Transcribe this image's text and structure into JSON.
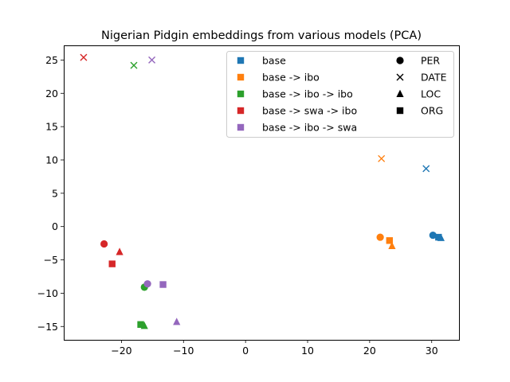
{
  "chart_data": {
    "type": "scatter",
    "title": "Nigerian Pidgin embeddings from various models (PCA)",
    "xlabel": "",
    "ylabel": "",
    "xlim": [
      -29.3,
      34.4
    ],
    "ylim": [
      -17.0,
      27.2
    ],
    "xticks": [
      -20,
      -10,
      0,
      10,
      20,
      30
    ],
    "yticks": [
      -15,
      -10,
      -5,
      0,
      5,
      10,
      15,
      20,
      25
    ],
    "grid": false,
    "legend_placement": "top-right",
    "series": [
      {
        "name": "base",
        "color": "#1f77b4",
        "points": [
          {
            "entity": "PER",
            "x": 30.2,
            "y": -1.3
          },
          {
            "entity": "DATE",
            "x": 29.1,
            "y": 8.7
          },
          {
            "entity": "LOC",
            "x": 31.5,
            "y": -1.7
          },
          {
            "entity": "ORG",
            "x": 31.1,
            "y": -1.6
          }
        ]
      },
      {
        "name": "base -> ibo",
        "color": "#ff7f0e",
        "points": [
          {
            "entity": "PER",
            "x": 21.7,
            "y": -1.6
          },
          {
            "entity": "DATE",
            "x": 21.9,
            "y": 10.2
          },
          {
            "entity": "LOC",
            "x": 23.6,
            "y": -2.9
          },
          {
            "entity": "ORG",
            "x": 23.2,
            "y": -2.1
          }
        ]
      },
      {
        "name": "base -> ibo -> ibo",
        "color": "#2ca02c",
        "points": [
          {
            "entity": "PER",
            "x": -16.3,
            "y": -9.1
          },
          {
            "entity": "DATE",
            "x": -18.0,
            "y": 24.2
          },
          {
            "entity": "LOC",
            "x": -16.3,
            "y": -14.9
          },
          {
            "entity": "ORG",
            "x": -16.9,
            "y": -14.7
          }
        ]
      },
      {
        "name": "base -> swa -> ibo",
        "color": "#d62728",
        "points": [
          {
            "entity": "PER",
            "x": -22.8,
            "y": -2.6
          },
          {
            "entity": "DATE",
            "x": -26.1,
            "y": 25.4
          },
          {
            "entity": "LOC",
            "x": -20.3,
            "y": -3.8
          },
          {
            "entity": "ORG",
            "x": -21.5,
            "y": -5.6
          }
        ]
      },
      {
        "name": "base -> ibo -> swa",
        "color": "#9467bd",
        "points": [
          {
            "entity": "PER",
            "x": -15.8,
            "y": -8.6
          },
          {
            "entity": "DATE",
            "x": -15.1,
            "y": 25.0
          },
          {
            "entity": "LOC",
            "x": -11.1,
            "y": -14.3
          },
          {
            "entity": "ORG",
            "x": -13.3,
            "y": -8.7
          }
        ]
      }
    ],
    "marker_legend": [
      {
        "entity": "PER",
        "label": "PER",
        "marker": "circle"
      },
      {
        "entity": "DATE",
        "label": "DATE",
        "marker": "x"
      },
      {
        "entity": "LOC",
        "label": "LOC",
        "marker": "triangle"
      },
      {
        "entity": "ORG",
        "label": "ORG",
        "marker": "square"
      }
    ]
  }
}
